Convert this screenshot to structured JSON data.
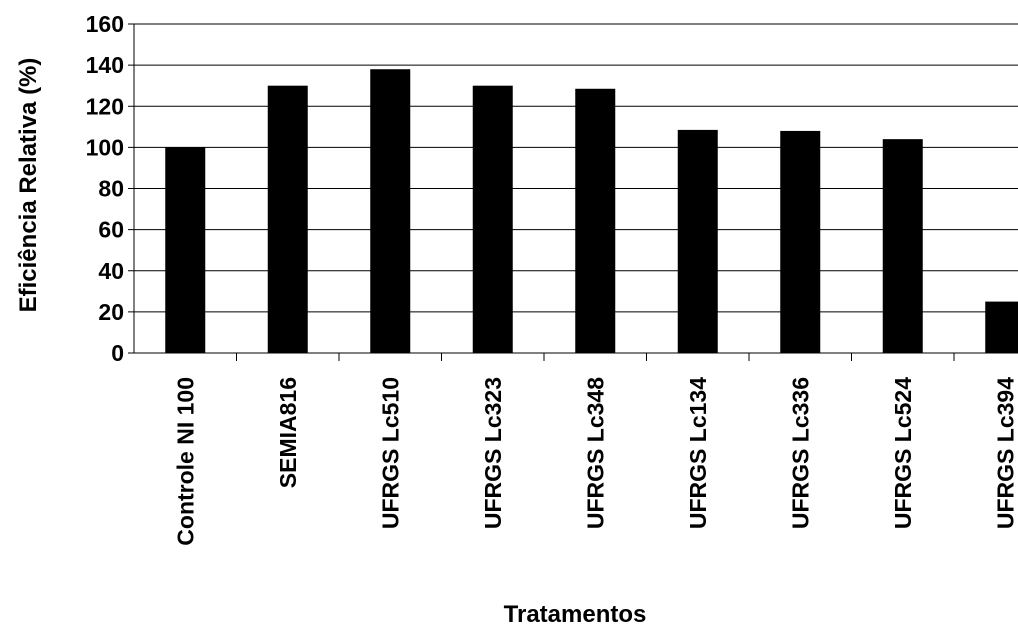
{
  "chart_data": {
    "type": "bar",
    "title": "",
    "xlabel": "Tratamentos",
    "ylabel": "Eficiência Relativa (%)",
    "ylim": [
      0,
      160
    ],
    "yticks": [
      0,
      20,
      40,
      60,
      80,
      100,
      120,
      140,
      160
    ],
    "grid": true,
    "legend": "none",
    "bar_color": "#000000",
    "categories": [
      "Controle NI 100",
      "SEMIA816",
      "UFRGS Lc510",
      "UFRGS Lc323",
      "UFRGS Lc348",
      "UFRGS Lc134",
      "UFRGS Lc336",
      "UFRGS Lc524",
      "UFRGS Lc394"
    ],
    "values": [
      100,
      130,
      138,
      130,
      128.5,
      108.5,
      108,
      104,
      25
    ]
  }
}
